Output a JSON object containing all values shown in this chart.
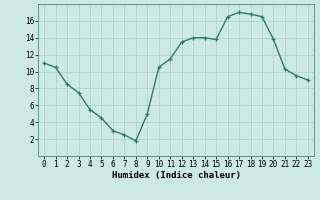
{
  "x": [
    0,
    1,
    2,
    3,
    4,
    5,
    6,
    7,
    8,
    9,
    10,
    11,
    12,
    13,
    14,
    15,
    16,
    17,
    18,
    19,
    20,
    21,
    22,
    23
  ],
  "y": [
    11,
    10.5,
    8.5,
    7.5,
    5.5,
    4.5,
    3,
    2.5,
    1.8,
    5,
    10.5,
    11.5,
    13.5,
    14,
    14,
    13.8,
    16.5,
    17,
    16.8,
    16.5,
    13.8,
    10.3,
    9.5,
    9
  ],
  "line_color": "#2d7d6e",
  "marker": "+",
  "bg_color": "#cce9e4",
  "grid_color": "#b0d4ce",
  "xlabel": "Humidex (Indice chaleur)",
  "xlim": [
    -0.5,
    23.5
  ],
  "ylim": [
    0,
    18
  ],
  "yticks": [
    2,
    4,
    6,
    8,
    10,
    12,
    14,
    16
  ],
  "xticks": [
    0,
    1,
    2,
    3,
    4,
    5,
    6,
    7,
    8,
    9,
    10,
    11,
    12,
    13,
    14,
    15,
    16,
    17,
    18,
    19,
    20,
    21,
    22,
    23
  ],
  "xlabel_fontsize": 6.5,
  "tick_fontsize": 5.5,
  "linewidth": 1.0,
  "markersize": 3.5,
  "markeredgewidth": 0.9
}
